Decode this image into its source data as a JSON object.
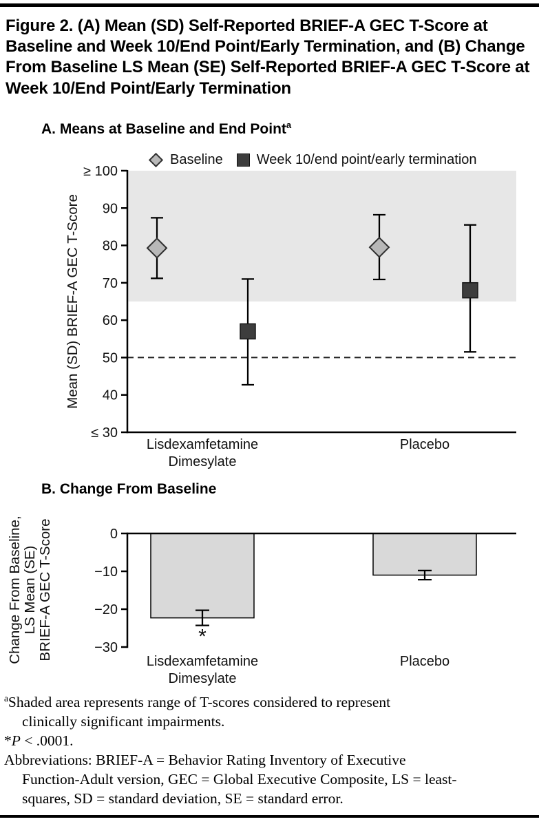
{
  "figure": {
    "title": "Figure 2. (A) Mean (SD) Self-Reported BRIEF-A GEC T-Score at Baseline and Week 10/End Point/Early Termination, and (B) Change From Baseline LS Mean (SE) Self-Reported BRIEF-A GEC T-Score at Week 10/End Point/Early Termination"
  },
  "chart_data": [
    {
      "type": "scatter",
      "panel": "A",
      "title": "A. Means at Baseline and End Point",
      "title_superscript": "a",
      "ylabel": "Mean (SD) BRIEF-A GEC T-Score",
      "ylim": [
        30,
        100
      ],
      "ytick_values": [
        100,
        90,
        80,
        70,
        60,
        50,
        40,
        30
      ],
      "ytick_labels": [
        "≥ 100",
        "90",
        "80",
        "70",
        "60",
        "50",
        "40",
        "≤ 30"
      ],
      "shaded_band": {
        "from": 65,
        "to": 100,
        "color": "#e7e7e7"
      },
      "reference_line": {
        "y": 50,
        "style": "dashed"
      },
      "categories": [
        [
          "Lisdexamfetamine",
          "Dimesylate"
        ],
        [
          "Placebo"
        ]
      ],
      "series": [
        {
          "name": "Baseline",
          "marker": "diamond",
          "color": "#b8b8b8",
          "values": [
            79.3,
            79.5
          ],
          "sd_low": [
            71.2,
            70.9
          ],
          "sd_high": [
            87.4,
            88.2
          ]
        },
        {
          "name": "Week 10/end point/early termination",
          "marker": "square",
          "color": "#3d3d3d",
          "values": [
            57.0,
            68.0
          ],
          "sd_low": [
            42.7,
            51.5
          ],
          "sd_high": [
            71.0,
            85.5
          ]
        }
      ]
    },
    {
      "type": "bar",
      "panel": "B",
      "title": "B. Change From Baseline",
      "ylabel_lines": [
        "Change From Baseline,",
        "LS Mean (SE)",
        "BRIEF-A GEC T-Score"
      ],
      "ylim": [
        -30,
        0
      ],
      "ytick_values": [
        0,
        -10,
        -20,
        -30
      ],
      "ytick_labels": [
        "0",
        "−10",
        "−20",
        "−30"
      ],
      "categories": [
        [
          "Lisdexamfetamine",
          "Dimesylate"
        ],
        [
          "Placebo"
        ]
      ],
      "values": [
        -22.3,
        -11.0
      ],
      "se": [
        2.0,
        1.2
      ],
      "bar_color": "#d9d9d9",
      "annotations": [
        {
          "category_index": 0,
          "text": "*"
        }
      ]
    }
  ],
  "footnotes": {
    "note_a": {
      "marker": "a",
      "line1": "Shaded area represents range of T-scores considered to represent",
      "line2": "clinically significant impairments."
    },
    "note_sig": {
      "marker": "*",
      "symbol": "P",
      "rest": " < .0001."
    },
    "abbreviations": {
      "line1": "Abbreviations: BRIEF-A = Behavior Rating Inventory of Executive",
      "line2": "Function-Adult version, GEC = Global Executive Composite, LS = least-",
      "line3": "squares, SD = standard deviation, SE = standard error."
    }
  }
}
